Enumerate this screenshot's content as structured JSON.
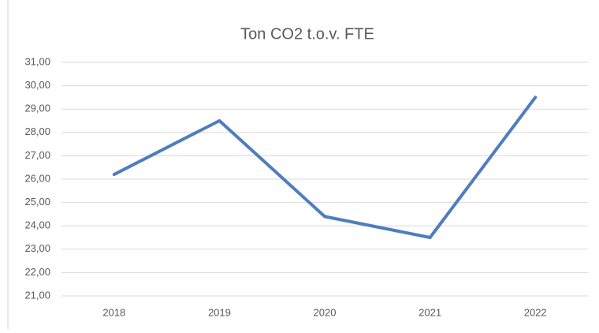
{
  "chart_data": {
    "type": "line",
    "title": "Ton CO2 t.o.v. FTE",
    "categories": [
      "2018",
      "2019",
      "2020",
      "2021",
      "2022"
    ],
    "series": [
      {
        "name": "Ton CO2 t.o.v. FTE",
        "color": "#4f7dbd",
        "values": [
          26.2,
          28.5,
          24.4,
          23.5,
          29.5
        ]
      }
    ],
    "ylim": [
      21,
      31
    ],
    "yticks": [
      {
        "value": 21,
        "label": "21,00"
      },
      {
        "value": 22,
        "label": "22,00"
      },
      {
        "value": 23,
        "label": "23,00"
      },
      {
        "value": 24,
        "label": "24,00"
      },
      {
        "value": 25,
        "label": "25,00"
      },
      {
        "value": 26,
        "label": "26,00"
      },
      {
        "value": 27,
        "label": "27,00"
      },
      {
        "value": 28,
        "label": "28,00"
      },
      {
        "value": 29,
        "label": "29,00"
      },
      {
        "value": 30,
        "label": "30,00"
      },
      {
        "value": 31,
        "label": "31,00"
      }
    ],
    "grid": true
  }
}
